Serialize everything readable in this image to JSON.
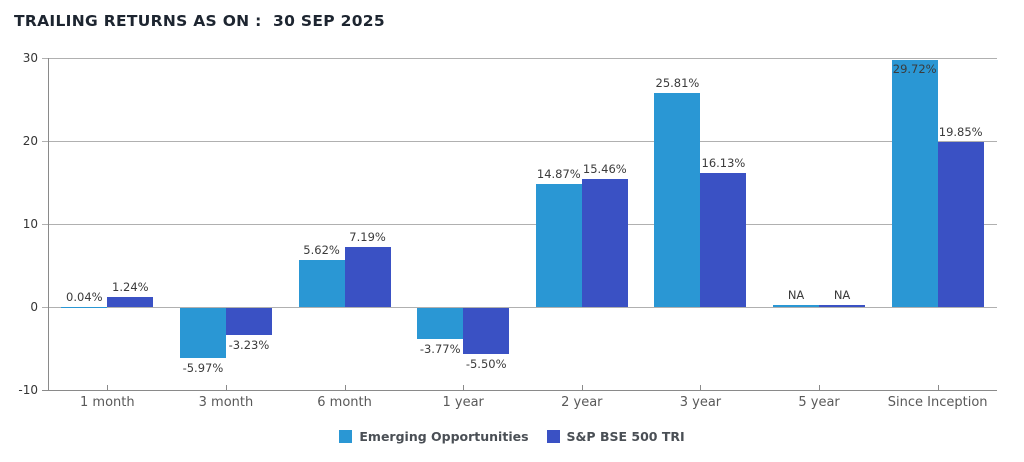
{
  "title": "TRAILING RETURNS AS ON :  30 SEP 2025",
  "colors": {
    "series1": "#2A97D4",
    "series2": "#3A51C4",
    "gridline": "#b0b0b0",
    "axis": "#8a8a8a"
  },
  "chart_data": {
    "type": "bar",
    "title": "TRAILING RETURNS AS ON :  30 SEP 2025",
    "categories": [
      "1 month",
      "3 month",
      "6 month",
      "1 year",
      "2 year",
      "3 year",
      "5 year",
      "Since Inception"
    ],
    "series": [
      {
        "name": "Emerging Opportunities",
        "color": "#2A97D4",
        "values": [
          0.04,
          -5.97,
          5.62,
          -3.77,
          14.87,
          25.81,
          null,
          29.72
        ],
        "labels": [
          "0.04%",
          "-5.97%",
          "5.62%",
          "-3.77%",
          "14.87%",
          "25.81%",
          "NA",
          "29.72%"
        ]
      },
      {
        "name": "S&P BSE 500 TRI",
        "color": "#3A51C4",
        "values": [
          1.24,
          -3.23,
          7.19,
          -5.5,
          15.46,
          16.13,
          null,
          19.85
        ],
        "labels": [
          "1.24%",
          "-3.23%",
          "7.19%",
          "-5.50%",
          "15.46%",
          "16.13%",
          "NA",
          "19.85%"
        ]
      }
    ],
    "xlabel": "",
    "ylabel": "",
    "yticks": [
      30,
      20,
      10,
      0,
      -10
    ],
    "ylim": [
      -10,
      30
    ],
    "grid": true,
    "legend_position": "bottom"
  }
}
